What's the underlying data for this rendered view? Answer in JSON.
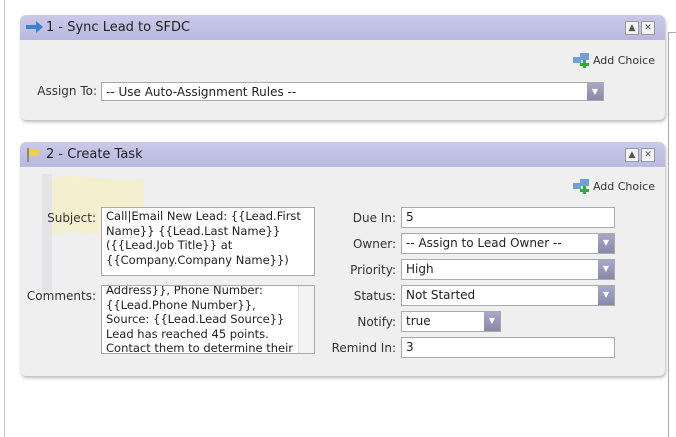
{
  "step1": {
    "title": "1 - Sync Lead to SFDC",
    "add_choice": "Add Choice",
    "assign_label": "Assign To:",
    "assign_value": "-- Use Auto-Assignment Rules --"
  },
  "step2": {
    "title": "2 - Create Task",
    "add_choice": "Add Choice",
    "subject_label": "Subject:",
    "subject_value": "Call|Email New Lead: {{Lead.First Name}} {{Lead.Last Name}} ({{Lead.Job Title}} at {{Company.Company Name}})",
    "comments_label": "Comments:",
    "comments_value": "Address}}, Phone Number: {{Lead.Phone Number}}, Source: {{Lead.Lead Source}} Lead has reached 45 points. Contact them to determine their needs.",
    "due_label": "Due In:",
    "due_value": "5",
    "owner_label": "Owner:",
    "owner_value": "-- Assign to Lead Owner --",
    "priority_label": "Priority:",
    "priority_value": "High",
    "status_label": "Status:",
    "status_value": "Not Started",
    "notify_label": "Notify:",
    "notify_value": "true",
    "remind_label": "Remind In:",
    "remind_value": "3"
  },
  "icons": {
    "step1": "arrow-right-icon",
    "step2": "flag-icon",
    "collapse": "triangle-up-icon",
    "close": "close-icon",
    "add": "add-choice-icon"
  }
}
